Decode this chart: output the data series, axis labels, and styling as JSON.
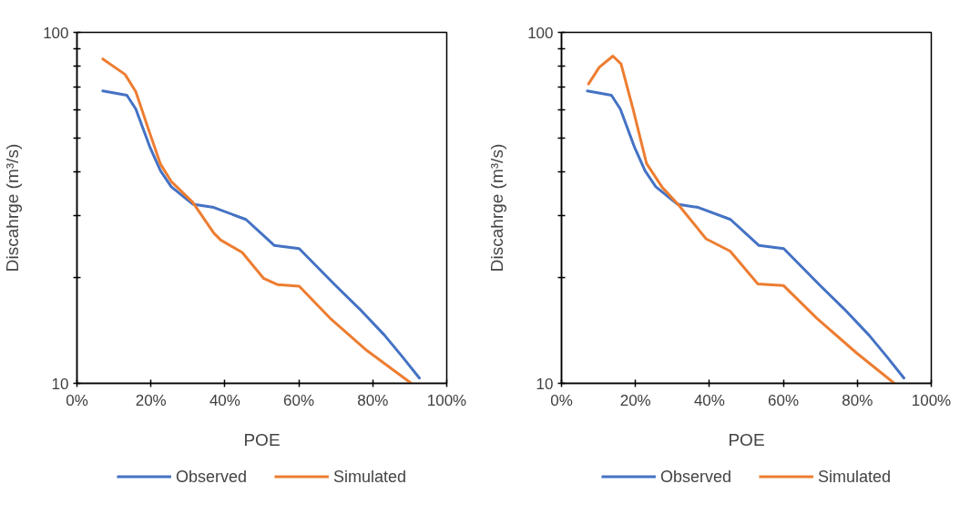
{
  "chart_data": [
    {
      "type": "line",
      "xlabel": "POE",
      "ylabel": "Discahrge (m³/s)",
      "log": "y",
      "grid": false,
      "legend": "bottom",
      "marker": "none",
      "line_style": "solid",
      "xlim": [
        0,
        100
      ],
      "xticks": [
        {
          "value": 0,
          "label": "0%"
        },
        {
          "value": 20,
          "label": "20%"
        },
        {
          "value": 40,
          "label": "40%"
        },
        {
          "value": 60,
          "label": "60%"
        },
        {
          "value": 80,
          "label": "80%"
        },
        {
          "value": 100,
          "label": "100%"
        }
      ],
      "ylim": [
        10,
        100
      ],
      "yticks": [
        10,
        {
          "value": 20,
          "label": null
        },
        {
          "value": 30,
          "label": null
        },
        {
          "value": 40,
          "label": null
        },
        {
          "value": 50,
          "label": null
        },
        {
          "value": 60,
          "label": null
        },
        {
          "value": 70,
          "label": null
        },
        {
          "value": 80,
          "label": null
        },
        {
          "value": 90,
          "label": null
        },
        100
      ],
      "series": [
        {
          "name": "Observed",
          "color": "#4472c4",
          "x": [
            7.0,
            13.5,
            15.9,
            19.7,
            22.6,
            25.5,
            31.3,
            37.0,
            45.7,
            53.4,
            60.1,
            69.7,
            76.4,
            83.2,
            88.0,
            92.6
          ],
          "values": [
            68.1,
            66.2,
            60.5,
            47.2,
            40.3,
            36.3,
            32.4,
            31.7,
            29.3,
            24.7,
            24.2,
            19.1,
            16.3,
            13.7,
            11.9,
            10.35
          ]
        },
        {
          "name": "Simulated",
          "color": "#ed7d31",
          "x": [
            7.0,
            13.0,
            15.9,
            19.7,
            22.6,
            25.5,
            31.3,
            37.0,
            38.9,
            44.7,
            50.5,
            54.3,
            60.1,
            68.8,
            78.4,
            90.4
          ],
          "values": [
            84.0,
            75.9,
            67.8,
            51.6,
            42.1,
            37.6,
            32.8,
            26.8,
            25.6,
            23.6,
            19.9,
            19.1,
            18.9,
            15.2,
            12.4,
            10.0
          ]
        }
      ]
    },
    {
      "type": "line",
      "xlabel": "POE",
      "ylabel": "Discahrge (m³/s)",
      "log": "y",
      "grid": false,
      "legend": "bottom",
      "marker": "none",
      "line_style": "solid",
      "xlim": [
        0,
        100
      ],
      "xticks": [
        {
          "value": 0,
          "label": "0%"
        },
        {
          "value": 20,
          "label": "20%"
        },
        {
          "value": 40,
          "label": "40%"
        },
        {
          "value": 60,
          "label": "60%"
        },
        {
          "value": 80,
          "label": "80%"
        },
        {
          "value": 100,
          "label": "100%"
        }
      ],
      "ylim": [
        10,
        100
      ],
      "yticks": [
        10,
        {
          "value": 20,
          "label": null
        },
        {
          "value": 30,
          "label": null
        },
        {
          "value": 40,
          "label": null
        },
        {
          "value": 50,
          "label": null
        },
        {
          "value": 60,
          "label": null
        },
        {
          "value": 70,
          "label": null
        },
        {
          "value": 80,
          "label": null
        },
        {
          "value": 90,
          "label": null
        },
        100
      ],
      "series": [
        {
          "name": "Observed",
          "color": "#4472c4",
          "x": [
            7.0,
            13.5,
            15.9,
            19.7,
            22.6,
            25.5,
            31.3,
            37.0,
            45.7,
            53.4,
            60.1,
            69.7,
            76.4,
            83.2,
            88.0,
            92.6
          ],
          "values": [
            68.1,
            66.2,
            60.5,
            47.2,
            40.3,
            36.3,
            32.4,
            31.7,
            29.3,
            24.7,
            24.2,
            19.1,
            16.3,
            13.7,
            11.9,
            10.35
          ]
        },
        {
          "name": "Simulated",
          "color": "#ed7d31",
          "x": [
            7.3,
            10.2,
            13.9,
            16.1,
            19.3,
            23.0,
            27.3,
            31.6,
            39.1,
            45.6,
            53.1,
            60.0,
            69.1,
            79.8,
            90.0
          ],
          "values": [
            71.3,
            79.5,
            85.6,
            81.3,
            60.7,
            42.3,
            36.1,
            32.3,
            25.8,
            23.8,
            19.2,
            19.0,
            15.3,
            12.2,
            10.0
          ]
        }
      ]
    }
  ]
}
